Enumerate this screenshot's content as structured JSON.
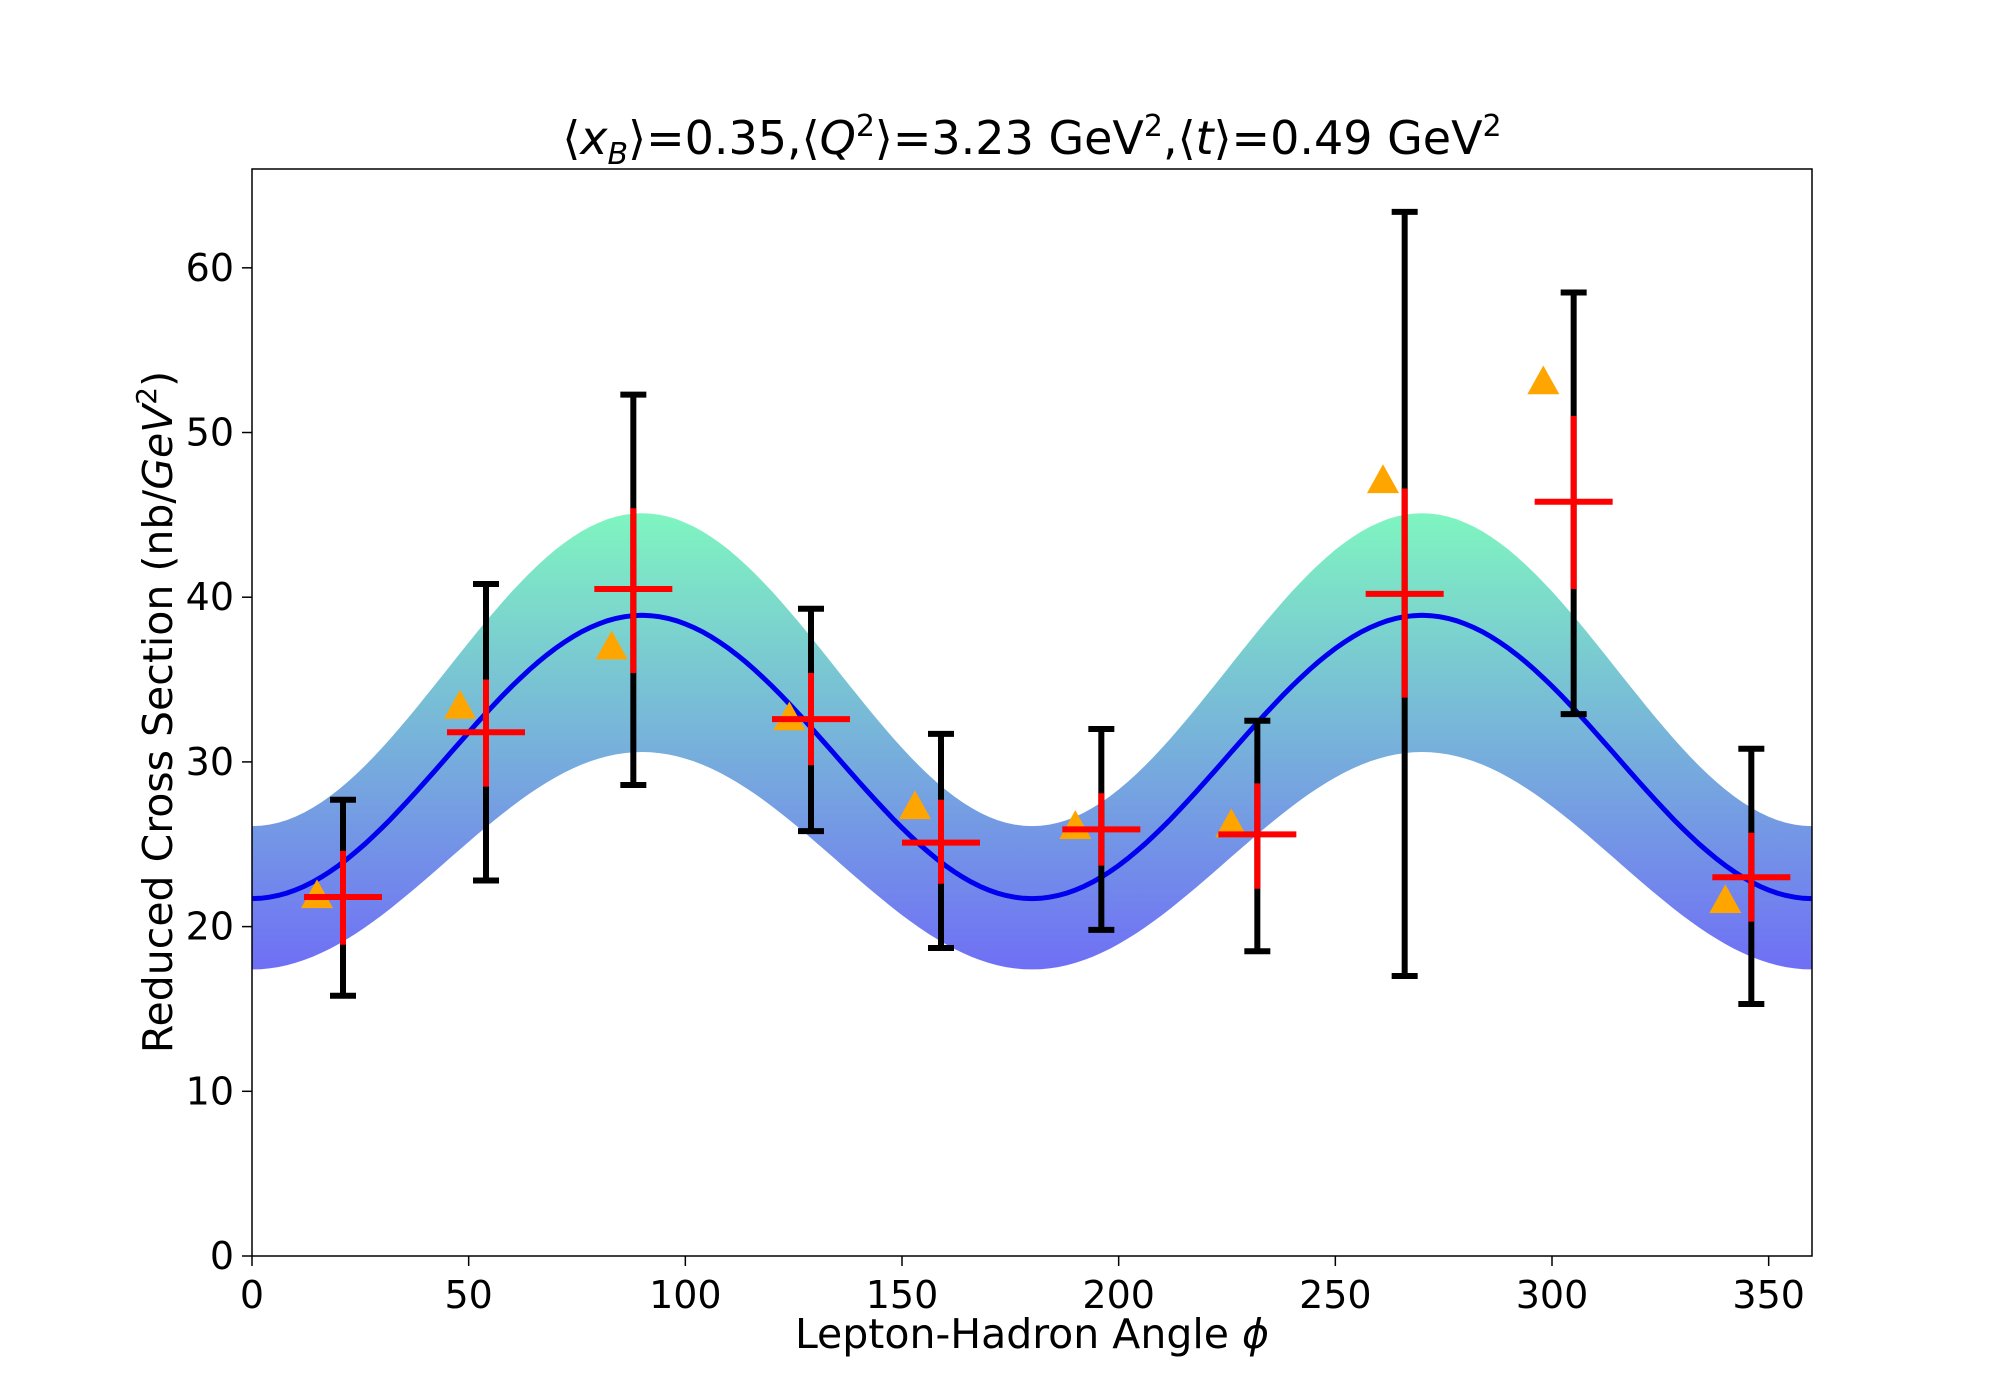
{
  "chart_data": {
    "type": "scatter",
    "title_parts": {
      "p1": "⟨",
      "p2": "x",
      "p3": "B",
      "p4": "⟩=0.35,⟨",
      "p5": "Q",
      "p6": "2",
      "p7": "⟩=3.23 GeV",
      "p8": "2",
      "p9": ",⟨",
      "p10": "t",
      "p11": "⟩=0.49 GeV",
      "p12": "2"
    },
    "xlabel_parts": {
      "p1": "Lepton-Hadron Angle ",
      "p2": "ϕ"
    },
    "ylabel_parts": {
      "p1": "Reduced Cross Section (nb/",
      "p2": "GeV",
      "p3": "2",
      "p4": ")"
    },
    "xlim": [
      0,
      360
    ],
    "ylim": [
      0,
      66
    ],
    "x_ticks": [
      0,
      50,
      100,
      150,
      200,
      250,
      300,
      350
    ],
    "y_ticks": [
      0,
      10,
      20,
      30,
      40,
      50,
      60
    ],
    "grid": false,
    "model_curve": {
      "color": "#0000ee",
      "form": "A - B*cos(2*phi)",
      "A": 30.3,
      "B": 8.6
    },
    "band": {
      "form": "A - B*cos(2*phi)",
      "upper": {
        "A": 35.6,
        "B": 9.5
      },
      "lower": {
        "A": 24.0,
        "B": 6.6
      },
      "top_color": "#7ff5c0",
      "bottom_color": "#6f6ff5"
    },
    "measurements": {
      "color": "#ff0000",
      "stat_error_color": "#ff0000",
      "total_error_color": "#000000",
      "points": [
        {
          "x": 21,
          "y": 21.8,
          "stat": [
            18.9,
            24.6
          ],
          "total": [
            15.8,
            27.7
          ],
          "xerr": 9
        },
        {
          "x": 54,
          "y": 31.8,
          "stat": [
            28.5,
            35.0
          ],
          "total": [
            22.8,
            40.8
          ],
          "xerr": 9
        },
        {
          "x": 88,
          "y": 40.5,
          "stat": [
            35.4,
            45.4
          ],
          "total": [
            28.6,
            52.3
          ],
          "xerr": 9
        },
        {
          "x": 129,
          "y": 32.6,
          "stat": [
            29.8,
            35.4
          ],
          "total": [
            25.8,
            39.3
          ],
          "xerr": 9
        },
        {
          "x": 159,
          "y": 25.1,
          "stat": [
            22.6,
            27.7
          ],
          "total": [
            18.7,
            31.7
          ],
          "xerr": 9
        },
        {
          "x": 196,
          "y": 25.9,
          "stat": [
            23.7,
            28.1
          ],
          "total": [
            19.8,
            32.0
          ],
          "xerr": 9
        },
        {
          "x": 232,
          "y": 25.6,
          "stat": [
            22.3,
            28.7
          ],
          "total": [
            18.5,
            32.5
          ],
          "xerr": 9
        },
        {
          "x": 266,
          "y": 40.2,
          "stat": [
            33.9,
            46.6
          ],
          "total": [
            17.0,
            63.4
          ],
          "xerr": 9
        },
        {
          "x": 305,
          "y": 45.8,
          "stat": [
            40.5,
            51.0
          ],
          "total": [
            32.9,
            58.5
          ],
          "xerr": 9
        },
        {
          "x": 346,
          "y": 23.0,
          "stat": [
            20.3,
            25.7
          ],
          "total": [
            15.3,
            30.8
          ],
          "xerr": 9
        }
      ]
    },
    "triangles": {
      "color": "#ffa500",
      "points": [
        {
          "x": 15,
          "y": 21.9
        },
        {
          "x": 48,
          "y": 33.4
        },
        {
          "x": 83,
          "y": 37.0
        },
        {
          "x": 124,
          "y": 32.7
        },
        {
          "x": 153,
          "y": 27.3
        },
        {
          "x": 190,
          "y": 26.1
        },
        {
          "x": 226,
          "y": 26.2
        },
        {
          "x": 261,
          "y": 47.1
        },
        {
          "x": 298,
          "y": 53.1
        },
        {
          "x": 340,
          "y": 21.6
        }
      ]
    }
  }
}
